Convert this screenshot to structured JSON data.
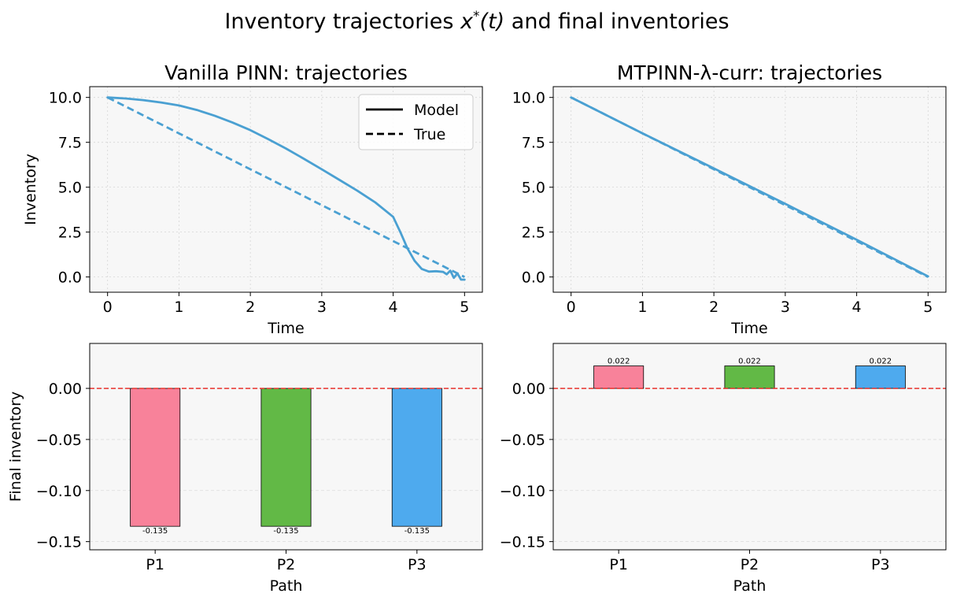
{
  "figure": {
    "title_main": "Inventory trajectories ",
    "title_math_var": "x",
    "title_math_sup": "*",
    "title_math_arg": "(t)",
    "title_rest": " and final inventories"
  },
  "chart_data": [
    {
      "type": "line",
      "title": "Vanilla PINN: trajectories",
      "xlabel": "Time",
      "ylabel": "Inventory",
      "xlim": [
        -0.25,
        5.25
      ],
      "ylim": [
        -0.85,
        10.6
      ],
      "xticks": [
        "0",
        "1",
        "2",
        "3",
        "4",
        "5"
      ],
      "yticks": [
        "0.0",
        "2.5",
        "5.0",
        "7.5",
        "10.0"
      ],
      "grid": true,
      "legend": {
        "placement": "top-right",
        "entries": [
          {
            "label": "Model",
            "style": "solid"
          },
          {
            "label": "True",
            "style": "dashed"
          }
        ]
      },
      "series_color": "#4aa0d2",
      "series": [
        {
          "style": "solid",
          "x": [
            0,
            0.25,
            0.5,
            0.75,
            1.0,
            1.25,
            1.5,
            1.75,
            2.0,
            2.25,
            2.5,
            2.75,
            3.0,
            3.25,
            3.5,
            3.75,
            4.0,
            4.1,
            4.2,
            4.3,
            4.4,
            4.5,
            4.6,
            4.7,
            4.75,
            4.8,
            4.85,
            4.9,
            4.95,
            5.0
          ],
          "y": [
            10.0,
            9.94,
            9.85,
            9.72,
            9.55,
            9.3,
            8.98,
            8.6,
            8.18,
            7.68,
            7.15,
            6.58,
            6.0,
            5.4,
            4.8,
            4.15,
            3.35,
            2.5,
            1.6,
            0.9,
            0.45,
            0.3,
            0.32,
            0.28,
            0.15,
            0.35,
            -0.05,
            0.2,
            -0.15,
            -0.15
          ]
        },
        {
          "style": "dashed",
          "x": [
            0,
            5
          ],
          "y": [
            10.0,
            0.0
          ]
        }
      ]
    },
    {
      "type": "line",
      "title": "MTPINN-λ-curr: trajectories",
      "xlabel": "Time",
      "ylabel": "",
      "xlim": [
        -0.25,
        5.25
      ],
      "ylim": [
        -0.85,
        10.6
      ],
      "xticks": [
        "0",
        "1",
        "2",
        "3",
        "4",
        "5"
      ],
      "yticks": [
        "0.0",
        "2.5",
        "5.0",
        "7.5",
        "10.0"
      ],
      "grid": true,
      "series_color": "#4aa0d2",
      "series": [
        {
          "style": "solid",
          "x": [
            0,
            1,
            2,
            3,
            4,
            5
          ],
          "y": [
            10.0,
            8.0,
            6.05,
            4.07,
            2.07,
            0.03
          ]
        },
        {
          "style": "dashed",
          "x": [
            0,
            5
          ],
          "y": [
            10.0,
            0.0
          ]
        }
      ]
    },
    {
      "type": "bar",
      "title": "",
      "xlabel": "Path",
      "ylabel": "Final inventory",
      "categories": [
        "P1",
        "P2",
        "P3"
      ],
      "values": [
        -0.135,
        -0.135,
        -0.135
      ],
      "data_labels": [
        "-0.135",
        "-0.135",
        "-0.135"
      ],
      "colors": [
        "#f8829a",
        "#62b946",
        "#4eaaee"
      ],
      "ylim": [
        -0.158,
        0.044
      ],
      "yticks": [
        "0.00",
        "−0.05",
        "−0.10",
        "−0.15"
      ],
      "reference_line": {
        "y": 0,
        "color": "#e8322c",
        "style": "dashed"
      },
      "grid": true
    },
    {
      "type": "bar",
      "title": "",
      "xlabel": "Path",
      "ylabel": "",
      "categories": [
        "P1",
        "P2",
        "P3"
      ],
      "values": [
        0.022,
        0.022,
        0.022
      ],
      "data_labels": [
        "0.022",
        "0.022",
        "0.022"
      ],
      "colors": [
        "#f8829a",
        "#62b946",
        "#4eaaee"
      ],
      "ylim": [
        -0.158,
        0.044
      ],
      "yticks": [
        "0.00",
        "−0.05",
        "−0.10",
        "−0.15"
      ],
      "reference_line": {
        "y": 0,
        "color": "#e8322c",
        "style": "dashed"
      },
      "grid": true
    }
  ]
}
